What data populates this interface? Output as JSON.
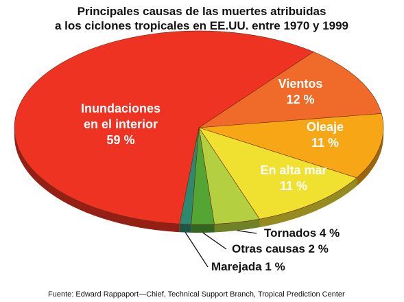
{
  "chart_data": {
    "type": "pie",
    "title_lines": [
      "Principales causas de las muertes atribuidas",
      "a los ciclones tropicales en EE.UU. entre 1970 y 1999"
    ],
    "slices": [
      {
        "label_lines": [
          "Inundaciones",
          "en el interior"
        ],
        "value": 59,
        "value_text": "59 %",
        "color": "#ee3322",
        "label_position": "inside"
      },
      {
        "label_lines": [
          "Vientos"
        ],
        "value": 12,
        "value_text": "12 %",
        "color": "#f06a2a",
        "label_position": "inside"
      },
      {
        "label_lines": [
          "Oleaje"
        ],
        "value": 11,
        "value_text": "11 %",
        "color": "#f7a716",
        "label_position": "inside"
      },
      {
        "label_lines": [
          "En alta mar"
        ],
        "value": 11,
        "value_text": "11 %",
        "color": "#f0e030",
        "label_position": "inside"
      },
      {
        "label_text": "Tornados 4 %",
        "value": 4,
        "color": "#b4d040",
        "label_position": "outside"
      },
      {
        "label_text": "Otras causas 2 %",
        "value": 2,
        "color": "#55a535",
        "label_position": "outside"
      },
      {
        "label_text": "Marejada 1 %",
        "value": 1,
        "color": "#2e8a6e",
        "label_position": "outside"
      }
    ],
    "source": "Fuente: Edward Rappaport—Chief, Technical Support Branch, Tropical Prediction Center"
  }
}
